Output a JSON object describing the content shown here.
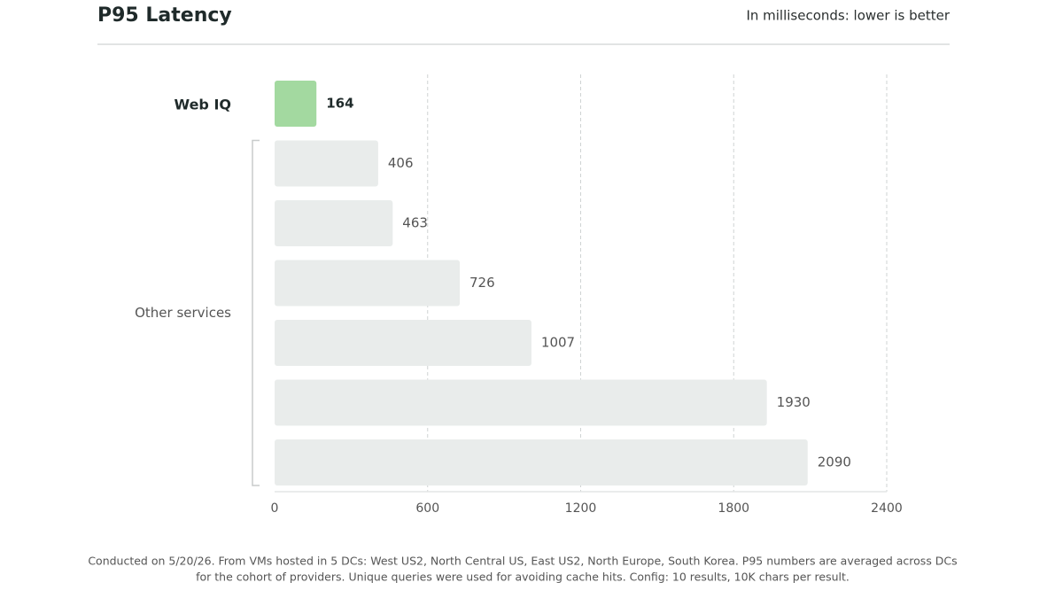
{
  "chart_data": {
    "type": "bar",
    "orientation": "horizontal",
    "title": "P95 Latency",
    "subtitle": "In milliseconds: lower is better",
    "categories": [
      "Web IQ",
      null,
      null,
      null,
      null,
      null,
      null
    ],
    "group_label": "Other services",
    "values": [
      164,
      406,
      463,
      726,
      1007,
      1930,
      2090
    ],
    "colors": [
      "#a3d9a0",
      "#e9eceb",
      "#e9eceb",
      "#e9eceb",
      "#e9eceb",
      "#e9eceb",
      "#e9eceb"
    ],
    "xlim": [
      0,
      2400
    ],
    "xticks": [
      0,
      600,
      1200,
      1800,
      2400
    ],
    "grid": true,
    "note": [
      "Conducted on 5/20/26. From VMs hosted in 5 DCs: West US2, North Central US, East US2, North Europe, South Korea. P95 numbers are averaged across DCs",
      "for the cohort of providers. Unique queries were used for avoiding cache hits. Config: 10 results, 10K chars per result."
    ]
  }
}
